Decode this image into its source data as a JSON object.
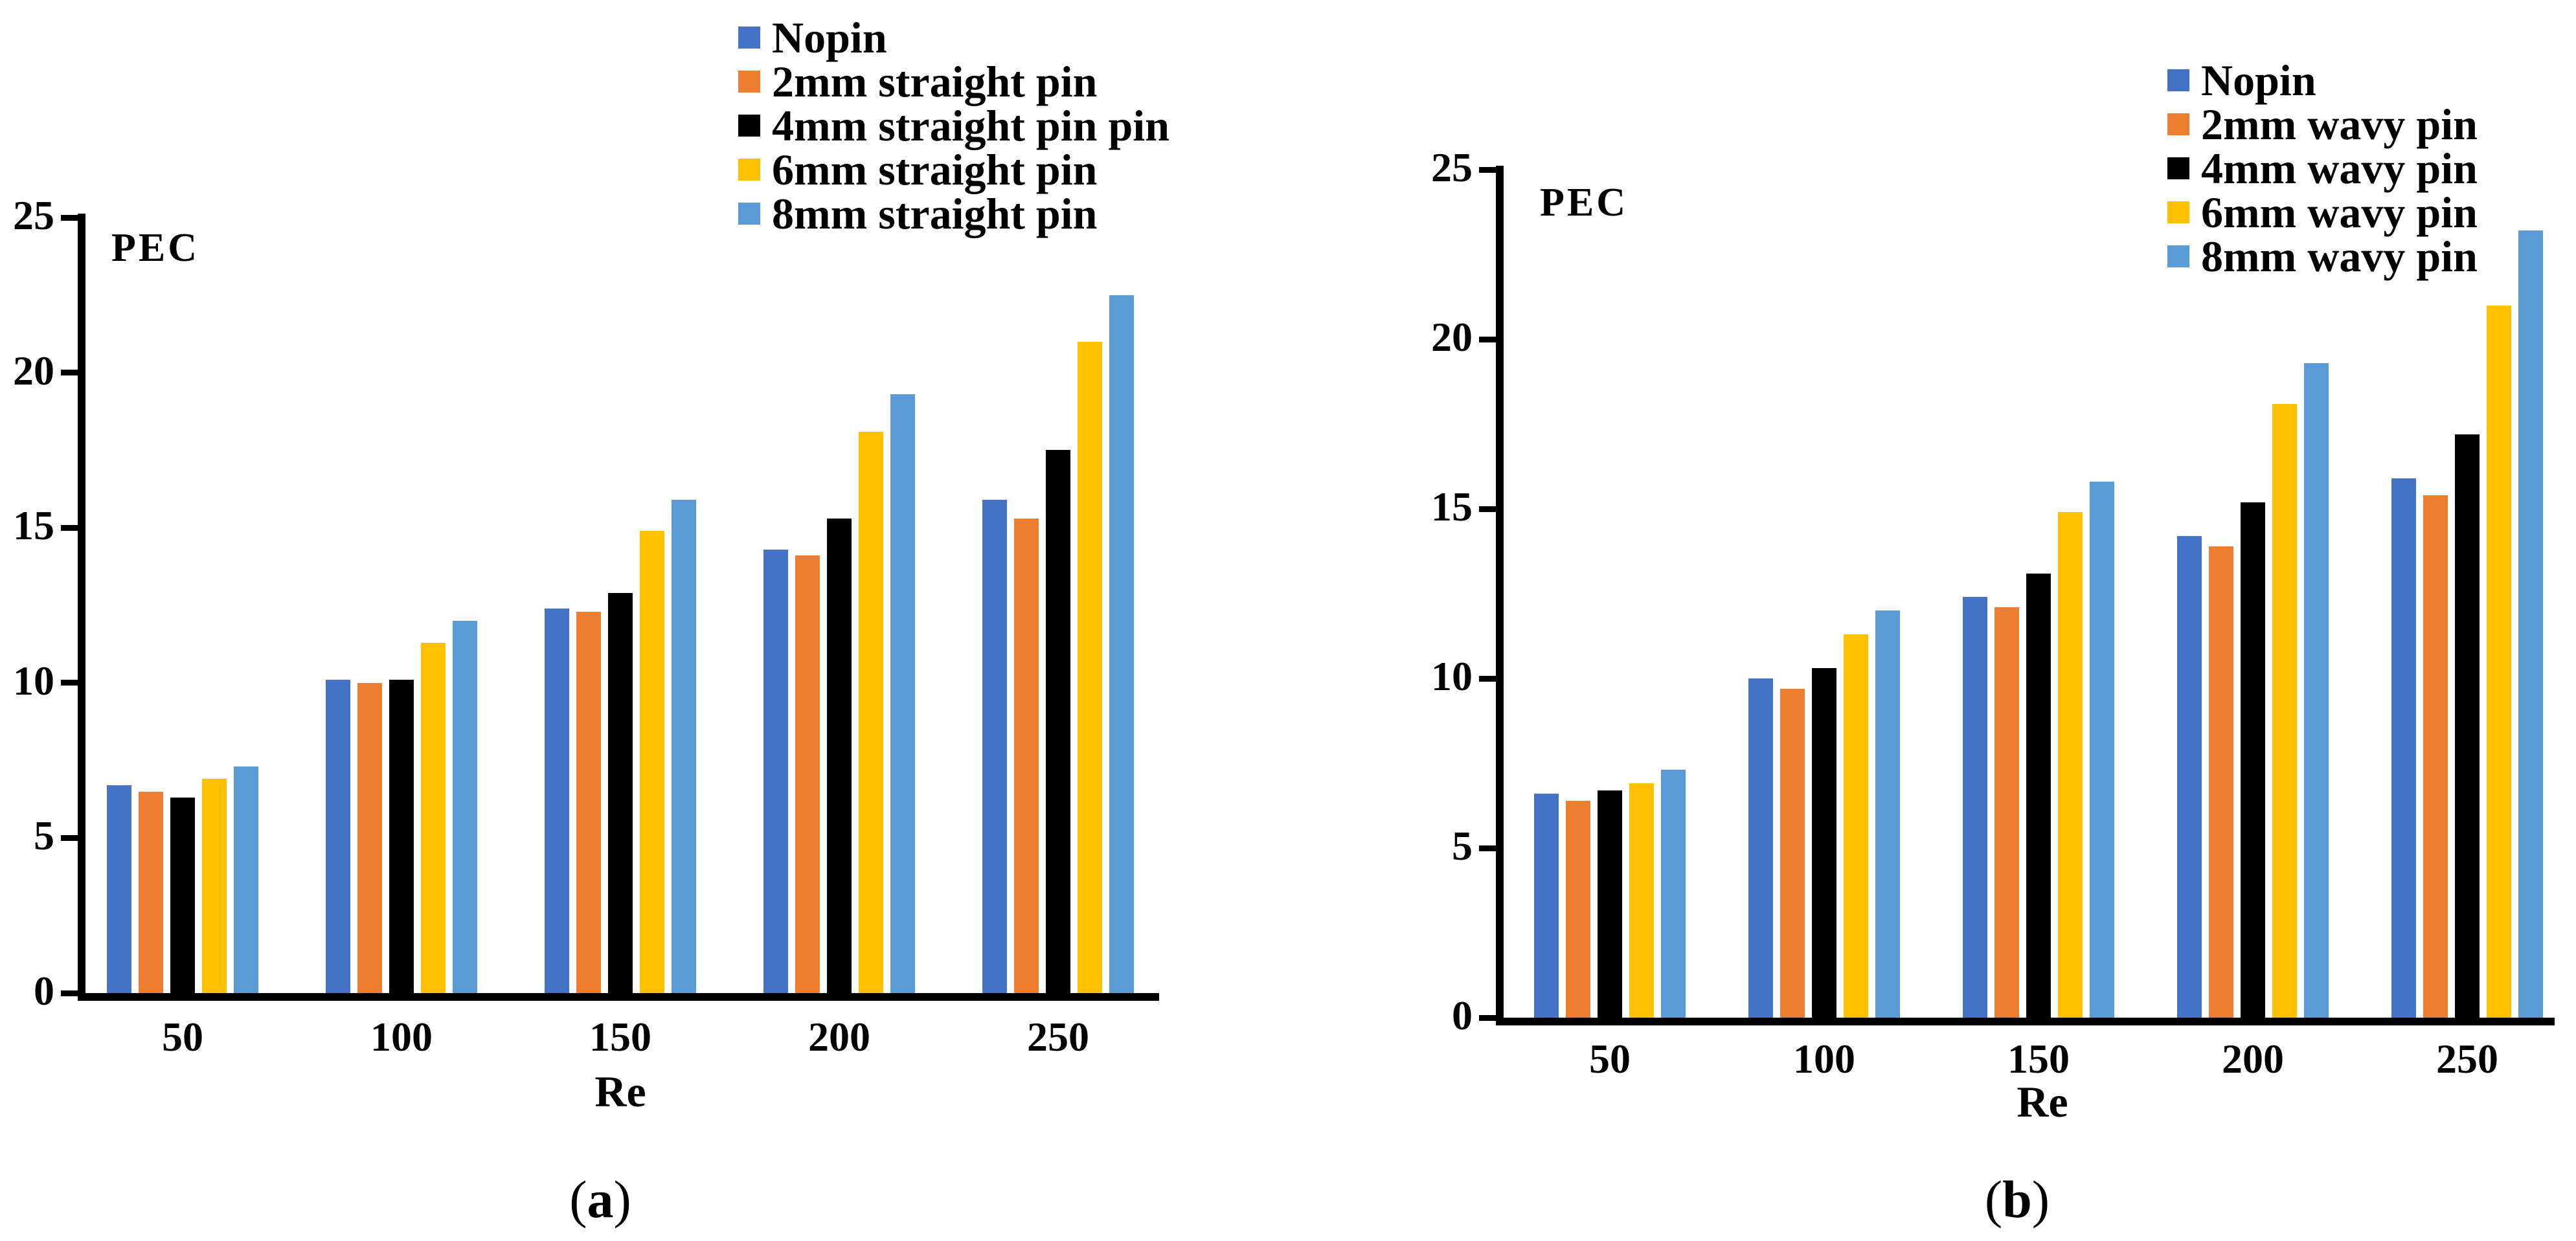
{
  "figure": {
    "background": "#ffffff",
    "text_color": "#000000"
  },
  "chart_data": [
    {
      "id": "a",
      "type": "bar",
      "title": "",
      "ylabel": "PEC",
      "xlabel": "Re",
      "ylim": [
        0,
        25
      ],
      "yticks": [
        0,
        5,
        10,
        15,
        20,
        25
      ],
      "grid": false,
      "legend_position": "top",
      "categories": [
        "50",
        "100",
        "150",
        "200",
        "250"
      ],
      "series": [
        {
          "name": "Nopin",
          "color": "#4472C4",
          "values": [
            6.7,
            10.1,
            12.4,
            14.3,
            15.9
          ]
        },
        {
          "name": "2mm straight pin",
          "color": "#ED7D31",
          "values": [
            6.5,
            10.0,
            12.3,
            14.1,
            15.3
          ]
        },
        {
          "name": "4mm straight pin pin",
          "color": "#000000",
          "values": [
            6.3,
            10.1,
            12.9,
            15.3,
            17.5
          ]
        },
        {
          "name": "6mm straight pin",
          "color": "#FFC000",
          "values": [
            6.9,
            11.3,
            14.9,
            18.1,
            21.0
          ]
        },
        {
          "name": "8mm straight pin",
          "color": "#5B9BD5",
          "values": [
            7.3,
            12.0,
            15.9,
            19.3,
            22.5
          ]
        }
      ],
      "caption_open": "(",
      "caption_letter": "a",
      "caption_close": ")"
    },
    {
      "id": "b",
      "type": "bar",
      "title": "",
      "ylabel": "PEC",
      "xlabel": "Re",
      "ylim": [
        0,
        25
      ],
      "yticks": [
        0,
        5,
        10,
        15,
        20,
        25
      ],
      "grid": false,
      "legend_position": "top",
      "categories": [
        "50",
        "100",
        "150",
        "200",
        "250"
      ],
      "series": [
        {
          "name": "Nopin",
          "color": "#4472C4",
          "values": [
            6.6,
            10.0,
            12.4,
            14.2,
            15.9
          ]
        },
        {
          "name": "2mm wavy pin",
          "color": "#ED7D31",
          "values": [
            6.4,
            9.7,
            12.1,
            13.9,
            15.4
          ]
        },
        {
          "name": "4mm wavy pin",
          "color": "#000000",
          "values": [
            6.7,
            10.3,
            13.1,
            15.2,
            17.2
          ]
        },
        {
          "name": "6mm wavy pin",
          "color": "#FFC000",
          "values": [
            6.9,
            11.3,
            14.9,
            18.1,
            21.0
          ]
        },
        {
          "name": "8mm wavy pin",
          "color": "#5B9BD5",
          "values": [
            7.3,
            12.0,
            15.8,
            19.3,
            23.2
          ]
        }
      ],
      "caption_open": "(",
      "caption_letter": "b",
      "caption_close": ")"
    }
  ]
}
